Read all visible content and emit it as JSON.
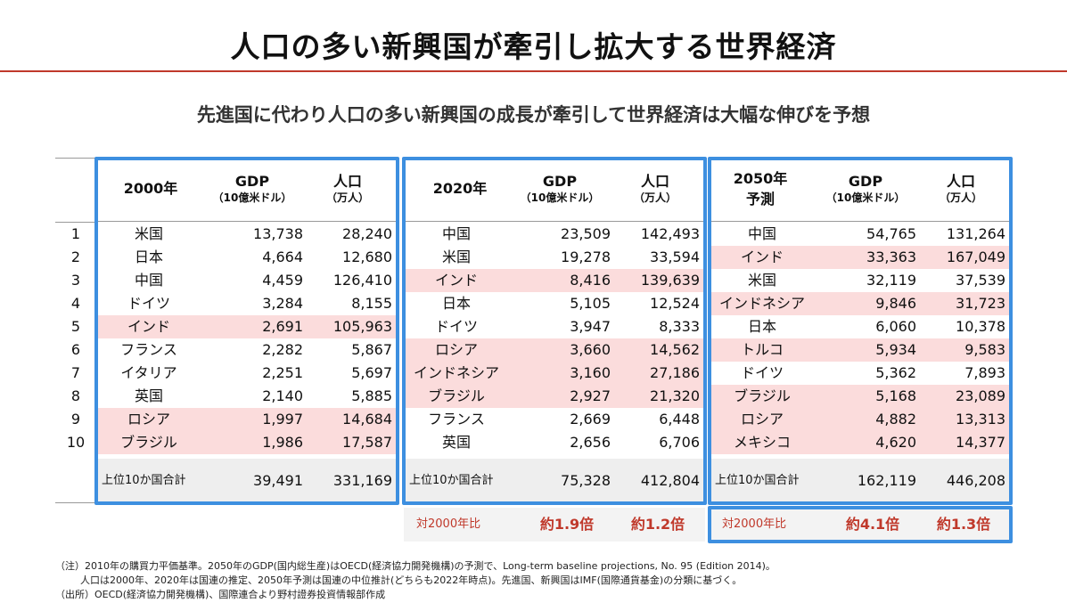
{
  "title": "人口の多い新興国が牽引し拡大する世界経済",
  "subtitle": "先進国に代わり人口の多い新興国の成長が牽引して世界経済は大幅な伸びを予想",
  "columns": {
    "gdp": "GDP",
    "gdp_unit": "（10億米ドル）",
    "pop": "人口",
    "pop_unit": "（万人）"
  },
  "ranks": [
    "1",
    "2",
    "3",
    "4",
    "5",
    "6",
    "7",
    "8",
    "9",
    "10"
  ],
  "total_label": "上位10か国合計",
  "colors": {
    "frame": "#3d8fe0",
    "highlight": "#fbdcdc",
    "accent": "#c0392b"
  },
  "blocks": [
    {
      "year": "2000年",
      "year_sub": "",
      "rows": [
        {
          "country": "米国",
          "gdp": "13,738",
          "pop": "28,240",
          "emerging": false
        },
        {
          "country": "日本",
          "gdp": "4,664",
          "pop": "12,680",
          "emerging": false
        },
        {
          "country": "中国",
          "gdp": "4,459",
          "pop": "126,410",
          "emerging": false
        },
        {
          "country": "ドイツ",
          "gdp": "3,284",
          "pop": "8,155",
          "emerging": false
        },
        {
          "country": "インド",
          "gdp": "2,691",
          "pop": "105,963",
          "emerging": true
        },
        {
          "country": "フランス",
          "gdp": "2,282",
          "pop": "5,867",
          "emerging": false
        },
        {
          "country": "イタリア",
          "gdp": "2,251",
          "pop": "5,697",
          "emerging": false
        },
        {
          "country": "英国",
          "gdp": "2,140",
          "pop": "5,885",
          "emerging": false
        },
        {
          "country": "ロシア",
          "gdp": "1,997",
          "pop": "14,684",
          "emerging": true
        },
        {
          "country": "ブラジル",
          "gdp": "1,986",
          "pop": "17,587",
          "emerging": true
        }
      ],
      "total_gdp": "39,491",
      "total_pop": "331,169"
    },
    {
      "year": "2020年",
      "year_sub": "",
      "rows": [
        {
          "country": "中国",
          "gdp": "23,509",
          "pop": "142,493",
          "emerging": false
        },
        {
          "country": "米国",
          "gdp": "19,278",
          "pop": "33,594",
          "emerging": false
        },
        {
          "country": "インド",
          "gdp": "8,416",
          "pop": "139,639",
          "emerging": true
        },
        {
          "country": "日本",
          "gdp": "5,105",
          "pop": "12,524",
          "emerging": false
        },
        {
          "country": "ドイツ",
          "gdp": "3,947",
          "pop": "8,333",
          "emerging": false
        },
        {
          "country": "ロシア",
          "gdp": "3,660",
          "pop": "14,562",
          "emerging": true
        },
        {
          "country": "インドネシア",
          "gdp": "3,160",
          "pop": "27,186",
          "emerging": true
        },
        {
          "country": "ブラジル",
          "gdp": "2,927",
          "pop": "21,320",
          "emerging": true
        },
        {
          "country": "フランス",
          "gdp": "2,669",
          "pop": "6,448",
          "emerging": false
        },
        {
          "country": "英国",
          "gdp": "2,656",
          "pop": "6,706",
          "emerging": false
        }
      ],
      "total_gdp": "75,328",
      "total_pop": "412,804",
      "ratio": {
        "label": "対2000年比",
        "gdp": "約1.9倍",
        "pop": "約1.2倍"
      }
    },
    {
      "year": "2050年",
      "year_sub": "予測",
      "rows": [
        {
          "country": "中国",
          "gdp": "54,765",
          "pop": "131,264",
          "emerging": false
        },
        {
          "country": "インド",
          "gdp": "33,363",
          "pop": "167,049",
          "emerging": true
        },
        {
          "country": "米国",
          "gdp": "32,119",
          "pop": "37,539",
          "emerging": false
        },
        {
          "country": "インドネシア",
          "gdp": "9,846",
          "pop": "31,723",
          "emerging": true
        },
        {
          "country": "日本",
          "gdp": "6,060",
          "pop": "10,378",
          "emerging": false
        },
        {
          "country": "トルコ",
          "gdp": "5,934",
          "pop": "9,583",
          "emerging": true
        },
        {
          "country": "ドイツ",
          "gdp": "5,362",
          "pop": "7,893",
          "emerging": false
        },
        {
          "country": "ブラジル",
          "gdp": "5,168",
          "pop": "23,089",
          "emerging": true
        },
        {
          "country": "ロシア",
          "gdp": "4,882",
          "pop": "13,313",
          "emerging": true
        },
        {
          "country": "メキシコ",
          "gdp": "4,620",
          "pop": "14,377",
          "emerging": true
        }
      ],
      "total_gdp": "162,119",
      "total_pop": "446,208",
      "ratio": {
        "label": "対2000年比",
        "gdp": "約4.1倍",
        "pop": "約1.3倍"
      }
    }
  ],
  "notes": [
    "（注）2010年の購買力平価基準。2050年のGDP(国内総生産)はOECD(経済協力開発機構)の予測で、Long-term baseline projections, No. 95 (Edition 2014)。",
    "人口は2000年、2020年は国連の推定、2050年予測は国連の中位推計(どちらも2022年時点)。先進国、新興国はIMF(国際通貨基金)の分類に基づく。",
    "（出所）OECD(経済協力開発機構)、国際連合より野村證券投資情報部作成"
  ]
}
